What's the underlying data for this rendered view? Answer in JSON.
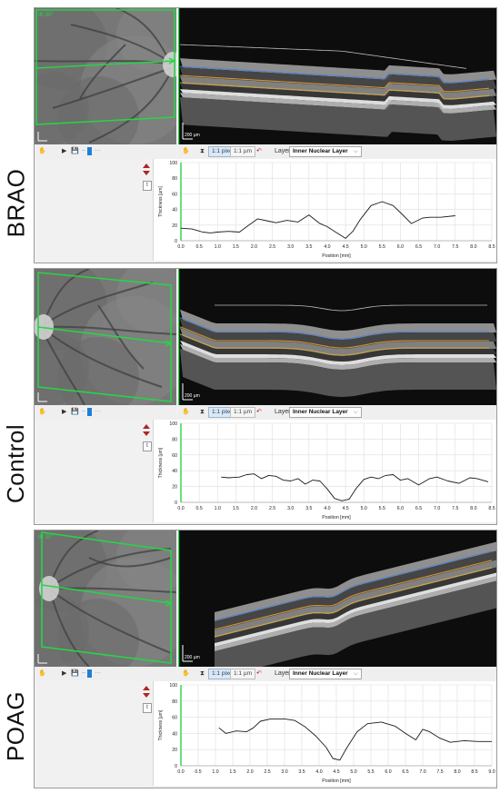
{
  "rows": [
    {
      "label": "BRAO",
      "fundus_label": "IR 30°",
      "scale_label": "200 µm",
      "toolbar": {
        "pixel_button": "1:1 pixel",
        "um_button": "1:1 µm",
        "layer_label": "Layer:",
        "layer_value": "Inner Nuclear Layer"
      },
      "chart_data": {
        "type": "line",
        "title": "",
        "xlabel": "Position [mm]",
        "ylabel": "Thickness [µm]",
        "xlim": [
          0,
          8.5
        ],
        "ylim": [
          0,
          100
        ],
        "x_ticks": [
          "0.0",
          "0.5",
          "1.0",
          "1.5",
          "2.0",
          "2.5",
          "3.0",
          "3.5",
          "4.0",
          "4.5",
          "5.0",
          "5.5",
          "6.0",
          "6.5",
          "7.0",
          "7.5",
          "8.0",
          "8.5"
        ],
        "y_ticks": [
          "0",
          "20",
          "40",
          "60",
          "80",
          "100"
        ],
        "grid": true,
        "series": [
          {
            "x": [
              0.0,
              0.3,
              0.6,
              0.8,
              1.0,
              1.3,
              1.6,
              1.8,
              2.1,
              2.4,
              2.6,
              2.9,
              3.2,
              3.5,
              3.8,
              4.0,
              4.2,
              4.5,
              4.7,
              4.9,
              5.2,
              5.5,
              5.8,
              6.0,
              6.3,
              6.6,
              6.8,
              7.1,
              7.5
            ],
            "y": [
              16,
              15,
              11,
              10,
              11,
              12,
              11,
              18,
              28,
              25,
              23,
              26,
              24,
              33,
              22,
              18,
              12,
              3,
              12,
              27,
              45,
              50,
              45,
              36,
              22,
              29,
              30,
              30,
              32
            ]
          }
        ]
      }
    },
    {
      "label": "Control",
      "fundus_label": "",
      "scale_label": "200 µm",
      "toolbar": {
        "pixel_button": "1:1 pixel",
        "um_button": "1:1 µm",
        "layer_label": "Layer:",
        "layer_value": "Inner Nuclear Layer"
      },
      "chart_data": {
        "type": "line",
        "title": "",
        "xlabel": "Position [mm]",
        "ylabel": "Thickness [µm]",
        "xlim": [
          0,
          8.5
        ],
        "ylim": [
          0,
          100
        ],
        "x_ticks": [
          "0.0",
          "0.5",
          "1.0",
          "1.5",
          "2.0",
          "2.5",
          "3.0",
          "3.5",
          "4.0",
          "4.5",
          "5.0",
          "5.5",
          "6.0",
          "6.5",
          "7.0",
          "7.5",
          "8.0",
          "8.5"
        ],
        "y_ticks": [
          "0",
          "20",
          "40",
          "60",
          "80",
          "100"
        ],
        "grid": true,
        "series": [
          {
            "x": [
              1.1,
              1.3,
              1.6,
              1.8,
              2.0,
              2.2,
              2.4,
              2.6,
              2.8,
              3.0,
              3.2,
              3.4,
              3.6,
              3.8,
              4.0,
              4.2,
              4.4,
              4.6,
              4.8,
              5.0,
              5.2,
              5.4,
              5.6,
              5.8,
              6.0,
              6.2,
              6.5,
              6.8,
              7.0,
              7.3,
              7.6,
              7.9,
              8.1,
              8.4
            ],
            "y": [
              32,
              31,
              32,
              35,
              36,
              30,
              34,
              33,
              28,
              27,
              30,
              23,
              28,
              27,
              17,
              5,
              2,
              4,
              18,
              29,
              32,
              30,
              34,
              35,
              28,
              30,
              22,
              30,
              32,
              27,
              24,
              31,
              30,
              26
            ]
          }
        ]
      }
    },
    {
      "label": "POAG",
      "fundus_label": "IR 30°",
      "scale_label": "200 µm",
      "toolbar": {
        "pixel_button": "1:1 pixel",
        "um_button": "1:1 µm",
        "layer_label": "Layer:",
        "layer_value": "Inner Nuclear Layer"
      },
      "chart_data": {
        "type": "line",
        "title": "",
        "xlabel": "Position [mm]",
        "ylabel": "Thickness [µm]",
        "xlim": [
          0,
          9.0
        ],
        "ylim": [
          0,
          100
        ],
        "x_ticks": [
          "0.0",
          "0.5",
          "1.0",
          "1.5",
          "2.0",
          "2.5",
          "3.0",
          "3.5",
          "4.0",
          "4.5",
          "5.0",
          "5.5",
          "6.0",
          "6.5",
          "7.0",
          "7.5",
          "8.0",
          "8.5",
          "9.0"
        ],
        "y_ticks": [
          "0",
          "20",
          "40",
          "60",
          "80",
          "100"
        ],
        "grid": true,
        "series": [
          {
            "x": [
              1.1,
              1.3,
              1.6,
              1.9,
              2.1,
              2.3,
              2.6,
              3.0,
              3.3,
              3.6,
              3.9,
              4.2,
              4.4,
              4.6,
              4.8,
              5.1,
              5.4,
              5.8,
              6.2,
              6.5,
              6.8,
              7.0,
              7.2,
              7.5,
              7.8,
              8.2,
              8.6,
              9.0
            ],
            "y": [
              47,
              40,
              43,
              42,
              47,
              55,
              58,
              58,
              56,
              48,
              37,
              23,
              9,
              7,
              22,
              42,
              52,
              54,
              49,
              40,
              32,
              45,
              42,
              34,
              29,
              31,
              30,
              30
            ]
          }
        ]
      }
    }
  ]
}
